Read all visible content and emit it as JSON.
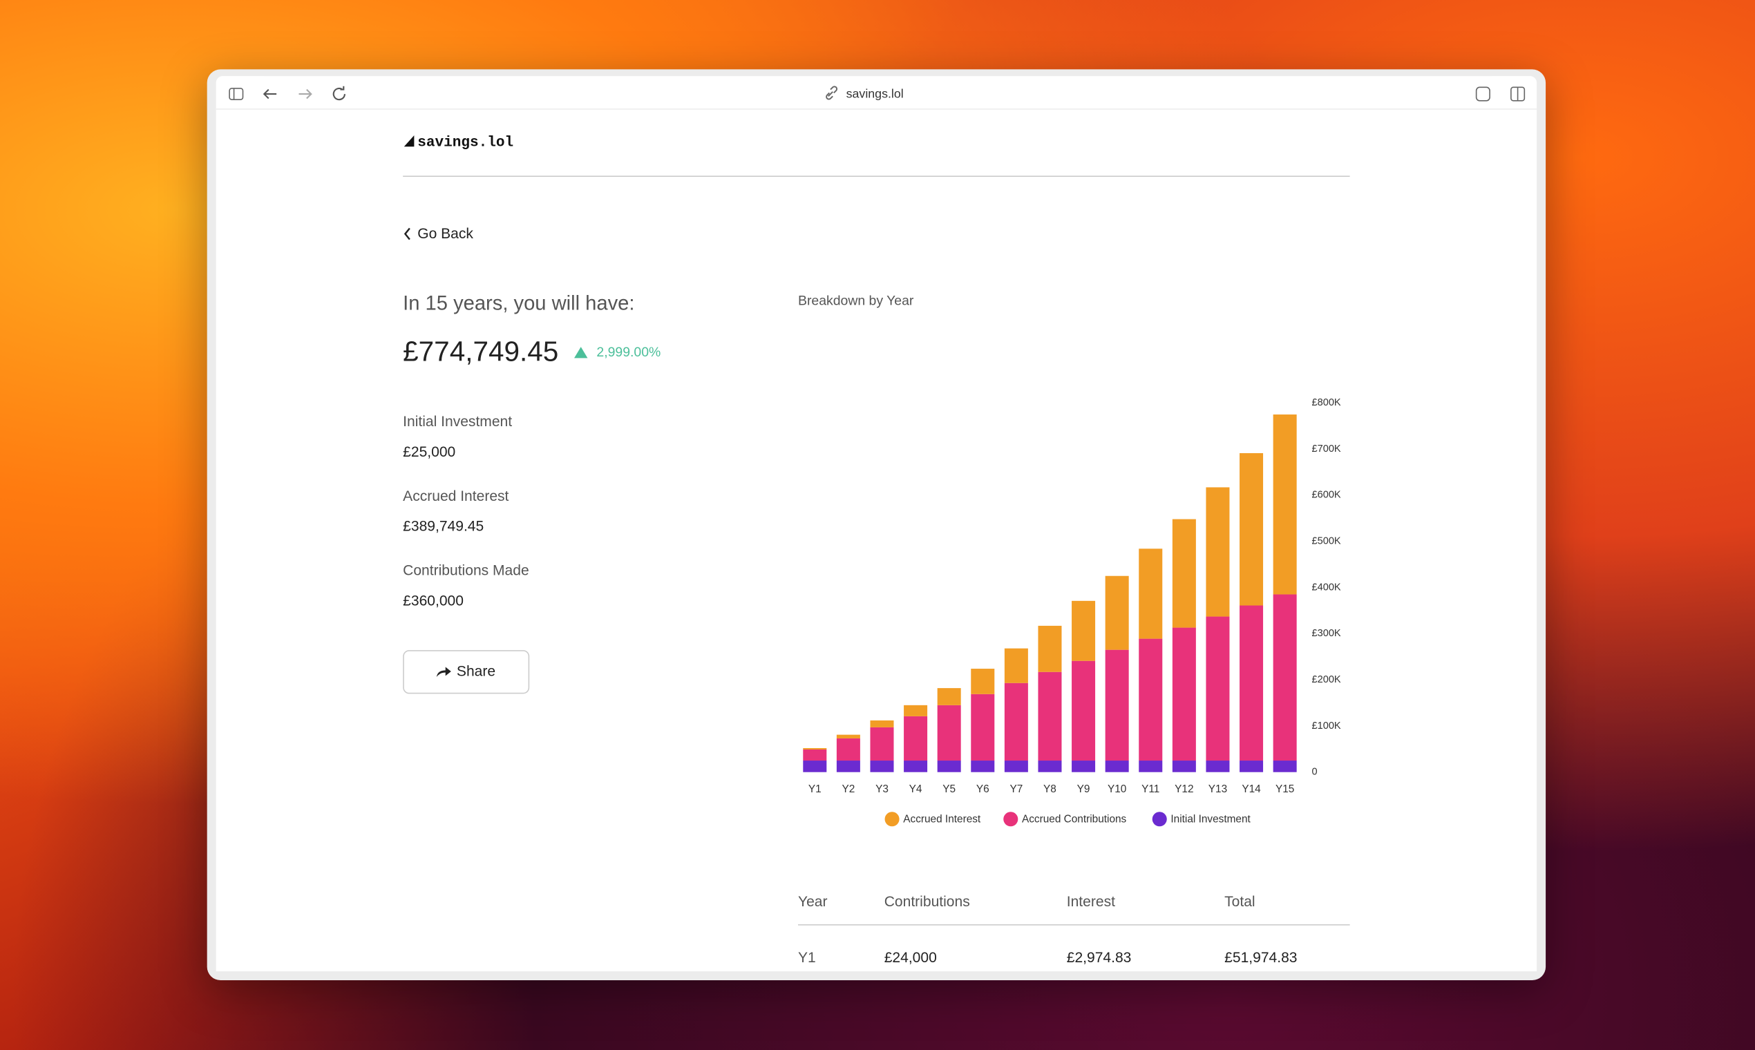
{
  "browser": {
    "url": "savings.lol"
  },
  "site": {
    "logo": "savings.lol",
    "back": "Go Back"
  },
  "summary": {
    "headline": "In 15 years, you will have:",
    "total": "£774,749.45",
    "change": "2,999.00%",
    "items": [
      {
        "label": "Initial Investment",
        "value": "£25,000"
      },
      {
        "label": "Accrued Interest",
        "value": "£389,749.45"
      },
      {
        "label": "Contributions Made",
        "value": "£360,000"
      }
    ],
    "share": "Share"
  },
  "chart_data": {
    "type": "stacked_bar",
    "title": "Breakdown by Year",
    "categories": [
      "Y1",
      "Y2",
      "Y3",
      "Y4",
      "Y5",
      "Y6",
      "Y7",
      "Y8",
      "Y9",
      "Y10",
      "Y11",
      "Y12",
      "Y13",
      "Y14",
      "Y15"
    ],
    "series": [
      {
        "name": "Accrued Interest",
        "color": "#f29d25",
        "values": [
          2974.83,
          8000,
          15000,
          24000,
          37000,
          55000,
          75000,
          100000,
          130000,
          160000,
          195000,
          235000,
          280000,
          330000,
          389749.45
        ]
      },
      {
        "name": "Accrued Contributions",
        "color": "#e8327a",
        "values": [
          24000,
          48000,
          72000,
          96000,
          120000,
          144000,
          168000,
          192000,
          216000,
          240000,
          264000,
          288000,
          312000,
          336000,
          360000
        ]
      },
      {
        "name": "Initial Investment",
        "color": "#6b2bd0",
        "values": [
          25000,
          25000,
          25000,
          25000,
          25000,
          25000,
          25000,
          25000,
          25000,
          25000,
          25000,
          25000,
          25000,
          25000,
          25000
        ]
      }
    ],
    "ylim": [
      0,
      800000
    ],
    "yticks": [
      0,
      {
        "value": 100000,
        "label": "£100K"
      },
      {
        "value": 200000,
        "label": "£200K"
      },
      {
        "value": 300000,
        "label": "£300K"
      },
      {
        "value": 400000,
        "label": "£400K"
      },
      {
        "value": 500000,
        "label": "£500K"
      },
      {
        "value": 600000,
        "label": "£600K"
      },
      {
        "value": 700000,
        "label": "£700K"
      },
      {
        "value": 800000,
        "label": "£800K"
      }
    ],
    "y_axis_side": "right",
    "legend": "bottom"
  },
  "table": {
    "header": [
      "Year",
      "Contributions",
      "Interest",
      "Total"
    ],
    "rows": [
      [
        "Y1",
        "£24,000",
        "£2,974.83",
        "£51,974.83"
      ]
    ]
  }
}
